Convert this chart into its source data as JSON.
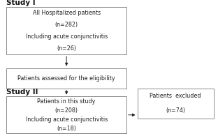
{
  "background_color": "#ffffff",
  "study1_label": "Study I",
  "study2_label": "Study II",
  "box1_lines": [
    "All Hospitalized patients",
    "(n=282)",
    "Including acute conjunctivitis",
    "(n=26)"
  ],
  "box2_lines": [
    "Patients assessed for the eligibility"
  ],
  "box3_lines": [
    "Patients in this study",
    "(n=208)",
    "Including acute conjunctivitis",
    "(n=18)"
  ],
  "box_excluded_lines": [
    "Patients  excluded",
    "(n=74)"
  ],
  "box_color": "#ffffff",
  "box_edge_color": "#777777",
  "text_color": "#222222",
  "label_color": "#111111",
  "arrow_color": "#222222",
  "font_size": 5.8,
  "label_font_size": 7.5,
  "label_font_weight": "bold"
}
